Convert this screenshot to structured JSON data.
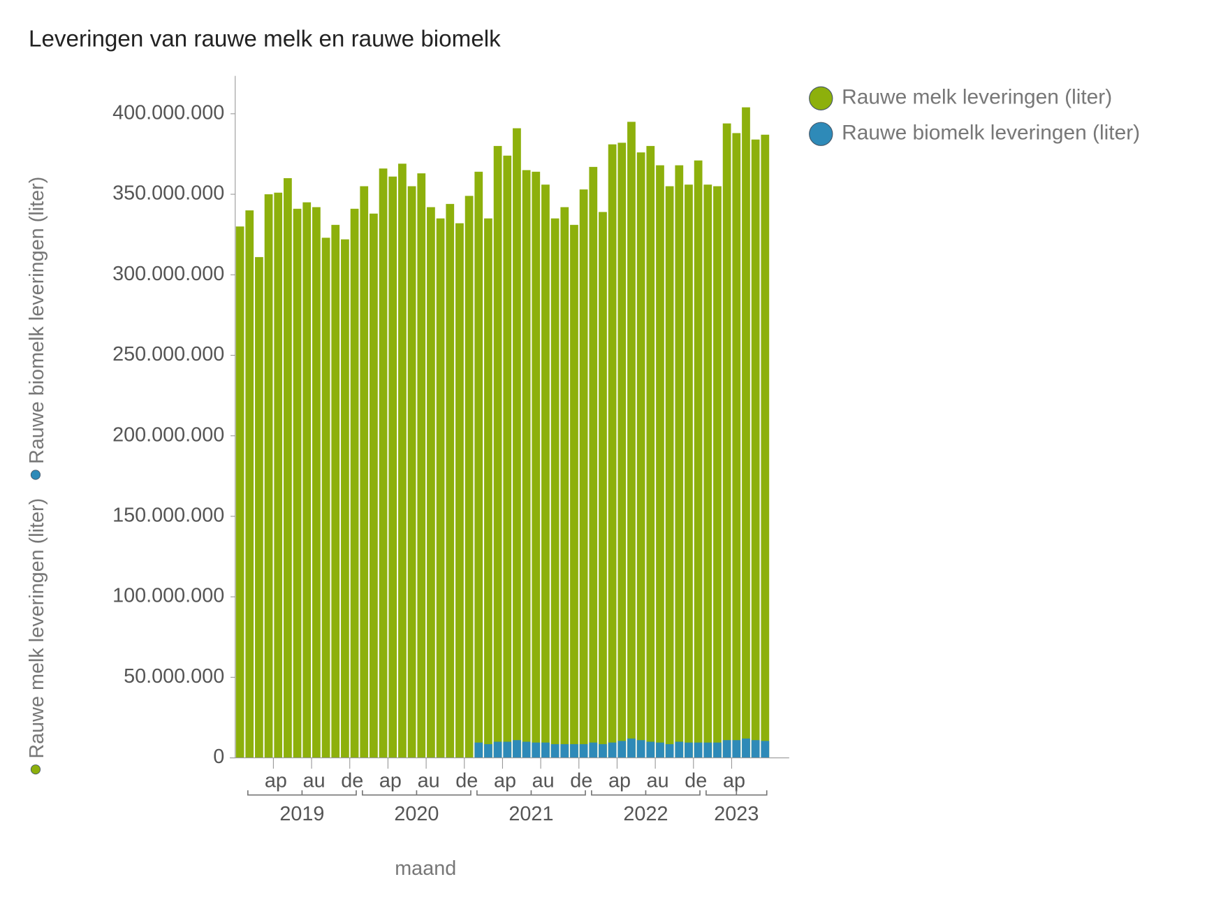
{
  "chart_data": {
    "type": "bar",
    "title": "Leveringen van rauwe melk en rauwe biomelk",
    "xlabel": "maand",
    "categories": [
      null,
      null,
      null,
      null,
      "ap",
      null,
      null,
      null,
      "au",
      null,
      null,
      null,
      "de",
      null,
      null,
      null,
      "ap",
      null,
      null,
      null,
      "au",
      null,
      null,
      null,
      "de",
      null,
      null,
      null,
      "ap",
      null,
      null,
      null,
      "au",
      null,
      null,
      null,
      "de",
      null,
      null,
      null,
      "ap",
      null,
      null,
      null,
      "au",
      null,
      null,
      null,
      "de",
      null,
      null,
      null,
      "ap",
      null,
      null,
      null
    ],
    "year_groups": [
      {
        "label": "2019",
        "start": 1,
        "end": 12
      },
      {
        "label": "2020",
        "start": 13,
        "end": 24
      },
      {
        "label": "2021",
        "start": 25,
        "end": 36
      },
      {
        "label": "2022",
        "start": 37,
        "end": 48
      },
      {
        "label": "2023",
        "start": 49,
        "end": 55
      }
    ],
    "series": [
      {
        "name": "Rauwe melk leveringen (liter)",
        "color": "#8db00c",
        "values": [
          330000000,
          340000000,
          311000000,
          350000000,
          351000000,
          360000000,
          341000000,
          345000000,
          342000000,
          323000000,
          331000000,
          322000000,
          341000000,
          355000000,
          338000000,
          366000000,
          361000000,
          369000000,
          355000000,
          363000000,
          342000000,
          335000000,
          344000000,
          332000000,
          349000000,
          364000000,
          335000000,
          380000000,
          374000000,
          391000000,
          365000000,
          364000000,
          356000000,
          335000000,
          342000000,
          331000000,
          353000000,
          367000000,
          339000000,
          381000000,
          382000000,
          395000000,
          376000000,
          380000000,
          368000000,
          355000000,
          368000000,
          356000000,
          371000000,
          356000000,
          355000000,
          394000000,
          388000000,
          404000000,
          384000000,
          387000000
        ]
      },
      {
        "name": "Rauwe biomelk leveringen (liter)",
        "color": "#2e8ab8",
        "values": [
          null,
          null,
          null,
          null,
          null,
          null,
          null,
          null,
          null,
          null,
          null,
          null,
          null,
          null,
          null,
          null,
          null,
          null,
          null,
          null,
          null,
          null,
          null,
          null,
          null,
          9500000,
          8500000,
          10000000,
          10000000,
          11000000,
          10000000,
          9500000,
          9500000,
          8500000,
          8500000,
          8500000,
          8500000,
          9500000,
          8500000,
          9500000,
          10500000,
          12000000,
          11000000,
          10000000,
          9500000,
          8500000,
          10000000,
          9500000,
          9500000,
          9500000,
          9500000,
          11000000,
          11000000,
          12000000,
          11000000,
          10500000
        ]
      }
    ],
    "ylim": [
      0,
      423500000
    ],
    "yticks": [
      0,
      {
        "value": 50000000,
        "label": "50.000.000"
      },
      {
        "value": 100000000,
        "label": "100.000.000"
      },
      {
        "value": 150000000,
        "label": "150.000.000"
      },
      {
        "value": 200000000,
        "label": "200.000.000"
      },
      {
        "value": 250000000,
        "label": "250.000.000"
      },
      {
        "value": 300000000,
        "label": "300.000.000"
      },
      {
        "value": 350000000,
        "label": "350.000.000"
      },
      {
        "value": 400000000,
        "label": "400.000.000"
      }
    ],
    "grid": false,
    "legend": "top-right"
  }
}
